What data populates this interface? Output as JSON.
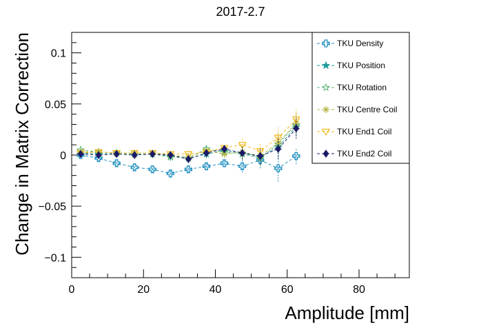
{
  "chart_data": {
    "type": "scatter",
    "title": "2017-2.7",
    "xlabel": "Amplitude [mm]",
    "ylabel": "Change in Matrix Correction",
    "xlim": [
      0,
      94
    ],
    "ylim": [
      -0.12,
      0.12
    ],
    "x_ticks": [
      0,
      20,
      40,
      60,
      80
    ],
    "y_ticks": [
      -0.1,
      -0.05,
      0,
      0.05,
      0.1
    ],
    "x_tick_labels": [
      "0",
      "20",
      "40",
      "60",
      "80"
    ],
    "y_tick_labels": [
      "−0.1",
      "−0.05",
      "0",
      "0.05",
      "0.1"
    ],
    "legend_position": "top-right",
    "grid": false,
    "x": [
      2.5,
      7.5,
      12.5,
      17.5,
      22.5,
      27.5,
      32.5,
      37.5,
      42.5,
      47.5,
      52.5,
      57.5,
      62.5
    ],
    "series": [
      {
        "name": "TKU Density",
        "color": "#1f8fbf",
        "marker": "open-cross",
        "values": [
          0.0,
          -0.003,
          -0.008,
          -0.012,
          -0.014,
          -0.018,
          -0.014,
          -0.011,
          -0.008,
          -0.011,
          -0.005,
          -0.013,
          -0.001
        ],
        "errors": [
          0.003,
          0.003,
          0.003,
          0.003,
          0.003,
          0.004,
          0.003,
          0.004,
          0.004,
          0.006,
          0.008,
          0.013,
          0.008
        ]
      },
      {
        "name": "TKU Position",
        "color": "#1e9a9a",
        "marker": "star",
        "values": [
          0.002,
          0.001,
          0.002,
          0.001,
          0.001,
          -0.001,
          -0.003,
          0.001,
          0.004,
          0.002,
          -0.002,
          0.008,
          0.028
        ],
        "errors": [
          0.003,
          0.003,
          0.003,
          0.003,
          0.003,
          0.004,
          0.003,
          0.004,
          0.004,
          0.006,
          0.008,
          0.01,
          0.01
        ]
      },
      {
        "name": "TKU Rotation",
        "color": "#5cb87a",
        "marker": "open-star",
        "values": [
          0.005,
          0.003,
          0.002,
          0.001,
          0.001,
          -0.002,
          -0.003,
          0.006,
          0.003,
          0.001,
          -0.003,
          0.011,
          0.03
        ],
        "errors": [
          0.003,
          0.003,
          0.003,
          0.003,
          0.003,
          0.004,
          0.003,
          0.004,
          0.004,
          0.006,
          0.008,
          0.01,
          0.01
        ]
      },
      {
        "name": "TKU Centre Coil",
        "color": "#b5b542",
        "marker": "asterisk",
        "values": [
          0.003,
          0.003,
          0.002,
          0.002,
          0.002,
          0.0,
          -0.002,
          0.004,
          0.001,
          0.003,
          -0.001,
          0.012,
          0.031
        ],
        "errors": [
          0.003,
          0.003,
          0.003,
          0.003,
          0.003,
          0.004,
          0.003,
          0.004,
          0.004,
          0.006,
          0.008,
          0.01,
          0.01
        ]
      },
      {
        "name": "TKU End1 Coil",
        "color": "#f2b81d",
        "marker": "open-triangle-down",
        "values": [
          0.002,
          0.003,
          0.002,
          0.002,
          0.002,
          0.001,
          0.001,
          0.003,
          0.007,
          0.01,
          0.004,
          0.017,
          0.035
        ],
        "errors": [
          0.003,
          0.003,
          0.003,
          0.003,
          0.003,
          0.004,
          0.003,
          0.004,
          0.004,
          0.006,
          0.008,
          0.01,
          0.01
        ]
      },
      {
        "name": "TKU End2 Coil",
        "color": "#1a1a66",
        "marker": "filled-diamond",
        "values": [
          0.001,
          0.0,
          0.001,
          0.0,
          0.001,
          0.0,
          -0.004,
          0.002,
          0.006,
          0.002,
          -0.001,
          0.006,
          0.026
        ],
        "errors": [
          0.003,
          0.003,
          0.003,
          0.003,
          0.003,
          0.004,
          0.003,
          0.004,
          0.004,
          0.006,
          0.008,
          0.01,
          0.01
        ]
      }
    ]
  }
}
